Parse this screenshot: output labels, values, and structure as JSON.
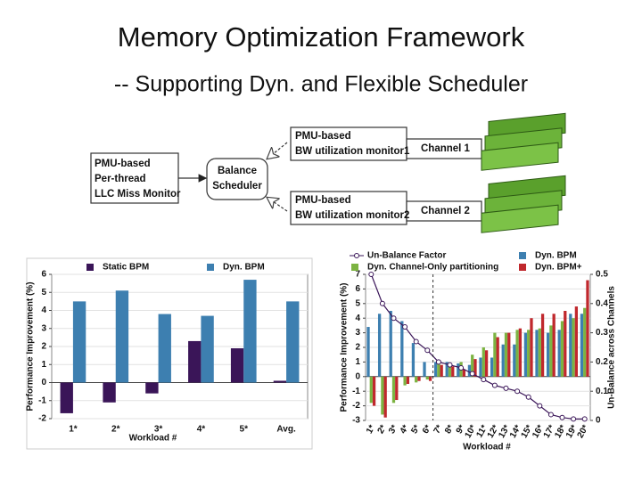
{
  "header": {
    "title": "Memory Optimization Framework",
    "subtitle": "-- Supporting Dyn. and Flexible Scheduler"
  },
  "diagram": {
    "nodes": [
      {
        "lines": [
          "PMU-based",
          "Per-thread",
          "LLC Miss Monitor"
        ]
      },
      {
        "lines": [
          "Balance",
          "Scheduler"
        ]
      },
      {
        "lines": [
          "PMU-based",
          "BW utilization monitor1"
        ]
      },
      {
        "lines": [
          "Channel 1"
        ]
      },
      {
        "lines": [
          "PMU-based",
          "BW utilization monitor2"
        ]
      },
      {
        "lines": [
          "Channel 2"
        ]
      }
    ]
  },
  "chart_data": [
    {
      "type": "bar",
      "y_label": "Performance Improvement (%)",
      "x_label": "Workload #",
      "categories": [
        "1*",
        "2*",
        "3*",
        "4*",
        "5*",
        "Avg."
      ],
      "series": [
        {
          "name": "Static BPM",
          "color": "#3a1558",
          "values": [
            -1.7,
            -1.1,
            -0.6,
            2.3,
            1.9,
            0.1
          ]
        },
        {
          "name": "Dyn. BPM",
          "color": "#3d7fb0",
          "values": [
            4.5,
            5.1,
            3.8,
            3.7,
            5.7,
            4.5
          ]
        }
      ],
      "ylim": [
        -2,
        6
      ],
      "yticks": [
        -2,
        -1,
        0,
        1,
        2,
        3,
        4,
        5,
        6
      ],
      "grid": true
    },
    {
      "type": "combo",
      "y_label": "Performance Improvement (%)",
      "x_label": "Workload #",
      "y2_label": "Un-Balance across Channels",
      "categories": [
        "1*",
        "2*",
        "3*",
        "4*",
        "5*",
        "6*",
        "7*",
        "8*",
        "9*",
        "10*",
        "11*",
        "12*",
        "13*",
        "14*",
        "15*",
        "16*",
        "17*",
        "18*",
        "19*",
        "20*"
      ],
      "series": [
        {
          "name": "Dyn. BPM",
          "type": "bar",
          "color": "#3d7fb0",
          "values": [
            3.4,
            4.3,
            4.5,
            3.8,
            2.3,
            1.0,
            1.0,
            1.0,
            0.9,
            0.8,
            1.3,
            1.3,
            2.2,
            2.2,
            3.0,
            3.2,
            3.0,
            3.2,
            4.3,
            4.3
          ]
        },
        {
          "name": "Dyn. Channel-Only partitioning",
          "type": "bar",
          "color": "#7cb342",
          "values": [
            -1.8,
            -2.6,
            -1.8,
            -0.6,
            -0.4,
            -0.2,
            1.0,
            0.9,
            1.0,
            1.5,
            2.0,
            3.0,
            3.0,
            3.2,
            3.2,
            3.3,
            3.5,
            3.8,
            4.0,
            4.7
          ]
        },
        {
          "name": "Dyn. BPM+",
          "type": "bar",
          "color": "#c0282d",
          "values": [
            -2.0,
            -2.8,
            -1.6,
            -0.5,
            -0.3,
            -0.3,
            0.8,
            0.7,
            0.5,
            1.2,
            1.8,
            2.7,
            3.0,
            3.3,
            4.0,
            4.3,
            4.3,
            4.5,
            4.8,
            6.6
          ]
        },
        {
          "name": "Un-Balance Factor",
          "type": "line",
          "axis": "y2",
          "color": "#3a1558",
          "values": [
            0.5,
            0.4,
            0.35,
            0.32,
            0.27,
            0.24,
            0.2,
            0.19,
            0.18,
            0.16,
            0.14,
            0.12,
            0.11,
            0.1,
            0.08,
            0.05,
            0.02,
            0.01,
            0.005,
            0.005
          ]
        }
      ],
      "ylim": [
        -3,
        7
      ],
      "yticks": [
        -3,
        -2,
        -1,
        0,
        1,
        2,
        3,
        4,
        5,
        6,
        7
      ],
      "y2lim": [
        0,
        0.5
      ],
      "y2ticks": [
        0,
        0.1,
        0.2,
        0.3,
        0.4,
        0.5
      ],
      "grid": true
    }
  ]
}
